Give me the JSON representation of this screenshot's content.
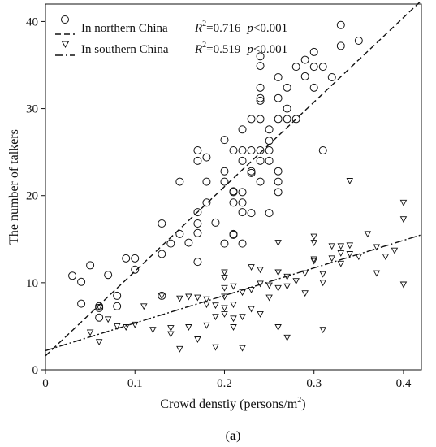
{
  "chart_data": {
    "type": "scatter",
    "xlabel": "Crowd denstiy (persons/m",
    "xlabel_sup": "2",
    "xlabel_close": ")",
    "ylabel": "The number of talkers",
    "xlim": [
      0,
      0.42
    ],
    "ylim": [
      0,
      42
    ],
    "x_ticks": [
      0,
      0.1,
      0.2,
      0.3,
      0.4
    ],
    "x_tick_labels": [
      "0",
      "0.1",
      "0.2",
      "0.3",
      "0.4"
    ],
    "y_ticks": [
      0,
      10,
      20,
      30,
      40
    ],
    "y_tick_labels": [
      "0",
      "10",
      "20",
      "30",
      "40"
    ],
    "grid": false,
    "legend_position": "top-left",
    "caption_open": "(",
    "caption_letter": "a",
    "caption_close": ")",
    "series": [
      {
        "name": "In northern China",
        "stat_r_label": "R",
        "stat_r_sup": "2",
        "stat_r_value": "=0.716",
        "stat_p_label": "p",
        "stat_p_value": "<0.001",
        "marker": "circle",
        "fit": {
          "x": [
            0,
            0.42
          ],
          "y": [
            1.6,
            42.4
          ]
        },
        "points": [
          [
            0.03,
            10.8
          ],
          [
            0.04,
            10.1
          ],
          [
            0.04,
            7.6
          ],
          [
            0.05,
            12
          ],
          [
            0.06,
            7.3
          ],
          [
            0.06,
            7.1
          ],
          [
            0.06,
            6
          ],
          [
            0.07,
            10.9
          ],
          [
            0.08,
            8.5
          ],
          [
            0.08,
            7.3
          ],
          [
            0.09,
            12.8
          ],
          [
            0.1,
            12.8
          ],
          [
            0.1,
            11.5
          ],
          [
            0.13,
            16.8
          ],
          [
            0.13,
            13.3
          ],
          [
            0.13,
            8.5
          ],
          [
            0.14,
            14.5
          ],
          [
            0.15,
            15.6
          ],
          [
            0.15,
            21.6
          ],
          [
            0.16,
            14.6
          ],
          [
            0.17,
            25.2
          ],
          [
            0.17,
            24
          ],
          [
            0.17,
            18.1
          ],
          [
            0.17,
            16.8
          ],
          [
            0.17,
            15.7
          ],
          [
            0.17,
            12.4
          ],
          [
            0.18,
            24.4
          ],
          [
            0.18,
            21.6
          ],
          [
            0.18,
            19.2
          ],
          [
            0.19,
            16.9
          ],
          [
            0.2,
            26.4
          ],
          [
            0.2,
            22.8
          ],
          [
            0.2,
            21.6
          ],
          [
            0.2,
            14.5
          ],
          [
            0.21,
            25.2
          ],
          [
            0.21,
            20.5
          ],
          [
            0.21,
            20.4
          ],
          [
            0.21,
            19.2
          ],
          [
            0.21,
            15.6
          ],
          [
            0.21,
            15.5
          ],
          [
            0.22,
            27.6
          ],
          [
            0.22,
            25.2
          ],
          [
            0.22,
            24
          ],
          [
            0.22,
            20.4
          ],
          [
            0.22,
            19.2
          ],
          [
            0.22,
            18.1
          ],
          [
            0.22,
            14.5
          ],
          [
            0.23,
            28.8
          ],
          [
            0.23,
            25.2
          ],
          [
            0.23,
            22.8
          ],
          [
            0.23,
            22.6
          ],
          [
            0.23,
            18
          ],
          [
            0.24,
            36
          ],
          [
            0.24,
            34.9
          ],
          [
            0.24,
            32.4
          ],
          [
            0.24,
            31.2
          ],
          [
            0.24,
            30.9
          ],
          [
            0.24,
            28.8
          ],
          [
            0.24,
            25.2
          ],
          [
            0.24,
            24
          ],
          [
            0.24,
            21.6
          ],
          [
            0.25,
            27.6
          ],
          [
            0.25,
            26.3
          ],
          [
            0.25,
            25.2
          ],
          [
            0.25,
            24
          ],
          [
            0.25,
            18
          ],
          [
            0.26,
            33.6
          ],
          [
            0.26,
            31.2
          ],
          [
            0.26,
            28.8
          ],
          [
            0.26,
            22.8
          ],
          [
            0.26,
            21.6
          ],
          [
            0.26,
            20.4
          ],
          [
            0.27,
            32.4
          ],
          [
            0.27,
            30
          ],
          [
            0.27,
            28.8
          ],
          [
            0.28,
            34.8
          ],
          [
            0.28,
            28.8
          ],
          [
            0.29,
            35.6
          ],
          [
            0.29,
            33.7
          ],
          [
            0.3,
            36.5
          ],
          [
            0.3,
            34.8
          ],
          [
            0.3,
            32.4
          ],
          [
            0.31,
            34.8
          ],
          [
            0.31,
            25.2
          ],
          [
            0.32,
            33.6
          ],
          [
            0.33,
            39.6
          ],
          [
            0.33,
            37.2
          ],
          [
            0.35,
            37.8
          ]
        ]
      },
      {
        "name": "In southern China",
        "stat_r_label": "R",
        "stat_r_sup": "2",
        "stat_r_value": "=0.519",
        "stat_p_label": "p",
        "stat_p_value": "<0.001",
        "marker": "triangle-down",
        "fit": {
          "x": [
            0,
            0.42
          ],
          "y": [
            2.2,
            15.5
          ]
        },
        "points": [
          [
            0.05,
            4.3
          ],
          [
            0.06,
            7.2
          ],
          [
            0.06,
            3.2
          ],
          [
            0.07,
            5.8
          ],
          [
            0.08,
            5
          ],
          [
            0.09,
            4.9
          ],
          [
            0.1,
            5.2
          ],
          [
            0.11,
            7.3
          ],
          [
            0.12,
            4.6
          ],
          [
            0.13,
            8.5
          ],
          [
            0.14,
            4.8
          ],
          [
            0.14,
            4.1
          ],
          [
            0.15,
            8.2
          ],
          [
            0.15,
            2.4
          ],
          [
            0.16,
            8.4
          ],
          [
            0.16,
            4.9
          ],
          [
            0.17,
            3.5
          ],
          [
            0.17,
            8.3
          ],
          [
            0.18,
            8.1
          ],
          [
            0.18,
            5.1
          ],
          [
            0.18,
            7.5
          ],
          [
            0.19,
            7.4
          ],
          [
            0.19,
            6.1
          ],
          [
            0.19,
            2.6
          ],
          [
            0.2,
            11.2
          ],
          [
            0.2,
            10.6
          ],
          [
            0.2,
            9.4
          ],
          [
            0.2,
            8.4
          ],
          [
            0.2,
            7.1
          ],
          [
            0.2,
            6.4
          ],
          [
            0.21,
            9.6
          ],
          [
            0.21,
            7.5
          ],
          [
            0.21,
            5.9
          ],
          [
            0.21,
            4.9
          ],
          [
            0.22,
            8.9
          ],
          [
            0.22,
            6.1
          ],
          [
            0.22,
            2.5
          ],
          [
            0.23,
            11.8
          ],
          [
            0.23,
            9.2
          ],
          [
            0.23,
            7
          ],
          [
            0.24,
            11.5
          ],
          [
            0.24,
            9.9
          ],
          [
            0.24,
            6.4
          ],
          [
            0.25,
            9.7
          ],
          [
            0.25,
            8.3
          ],
          [
            0.26,
            14.6
          ],
          [
            0.26,
            11.2
          ],
          [
            0.26,
            9.4
          ],
          [
            0.26,
            4.9
          ],
          [
            0.27,
            10.7
          ],
          [
            0.27,
            9.6
          ],
          [
            0.27,
            3.7
          ],
          [
            0.28,
            10.2
          ],
          [
            0.29,
            11.1
          ],
          [
            0.29,
            8.8
          ],
          [
            0.3,
            15.3
          ],
          [
            0.3,
            14.6
          ],
          [
            0.3,
            12.7
          ],
          [
            0.3,
            12.5
          ],
          [
            0.31,
            11
          ],
          [
            0.31,
            10
          ],
          [
            0.31,
            4.6
          ],
          [
            0.32,
            14.2
          ],
          [
            0.32,
            12.8
          ],
          [
            0.33,
            14.2
          ],
          [
            0.33,
            13.4
          ],
          [
            0.33,
            12.2
          ],
          [
            0.34,
            14.3
          ],
          [
            0.34,
            21.7
          ],
          [
            0.34,
            13.3
          ],
          [
            0.35,
            13
          ],
          [
            0.36,
            15.6
          ],
          [
            0.37,
            14.1
          ],
          [
            0.37,
            11.1
          ],
          [
            0.38,
            13
          ],
          [
            0.39,
            13.7
          ],
          [
            0.4,
            19.2
          ],
          [
            0.4,
            17.3
          ],
          [
            0.4,
            9.8
          ]
        ]
      }
    ]
  }
}
